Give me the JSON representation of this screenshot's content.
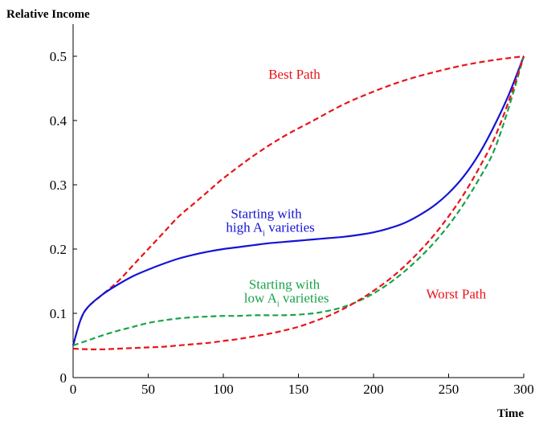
{
  "chart_data": {
    "type": "line",
    "title": "",
    "xlabel": "Time",
    "ylabel": "Relative Income",
    "xlim": [
      0,
      300
    ],
    "ylim": [
      0,
      0.55
    ],
    "xticks": [
      0,
      50,
      100,
      150,
      200,
      250,
      300
    ],
    "yticks": [
      0,
      0.1,
      0.2,
      0.3,
      0.4,
      0.5
    ],
    "xtick_labels": [
      "0",
      "50",
      "100",
      "150",
      "200",
      "250",
      "300"
    ],
    "ytick_labels": [
      "0",
      "0.1",
      "0.2",
      "0.3",
      "0.4",
      "0.5"
    ],
    "grid": false,
    "legend": "none",
    "series": [
      {
        "key": "best",
        "color": "#e8141a",
        "style": "dashed",
        "x": [
          0,
          5,
          10,
          20,
          30,
          40,
          50,
          60,
          70,
          80,
          90,
          100,
          120,
          140,
          160,
          180,
          200,
          220,
          240,
          260,
          280,
          300
        ],
        "y": [
          0.05,
          0.09,
          0.11,
          0.13,
          0.15,
          0.175,
          0.2,
          0.225,
          0.25,
          0.27,
          0.29,
          0.31,
          0.345,
          0.375,
          0.4,
          0.425,
          0.445,
          0.462,
          0.475,
          0.486,
          0.494,
          0.5
        ]
      },
      {
        "key": "high",
        "color": "#1414d4",
        "style": "solid",
        "x": [
          0,
          5,
          10,
          20,
          30,
          40,
          50,
          60,
          70,
          80,
          90,
          100,
          110,
          120,
          130,
          140,
          150,
          160,
          170,
          180,
          190,
          200,
          210,
          220,
          230,
          240,
          250,
          260,
          270,
          280,
          290,
          300
        ],
        "y": [
          0.05,
          0.09,
          0.11,
          0.13,
          0.145,
          0.158,
          0.168,
          0.177,
          0.185,
          0.191,
          0.196,
          0.2,
          0.203,
          0.206,
          0.209,
          0.211,
          0.213,
          0.215,
          0.217,
          0.219,
          0.222,
          0.226,
          0.232,
          0.24,
          0.252,
          0.267,
          0.287,
          0.313,
          0.347,
          0.39,
          0.44,
          0.5
        ]
      },
      {
        "key": "low",
        "color": "#1aa34a",
        "style": "dashed",
        "x": [
          0,
          10,
          20,
          30,
          40,
          50,
          60,
          70,
          80,
          90,
          100,
          110,
          120,
          130,
          140,
          150,
          160,
          170,
          180,
          190,
          200,
          210,
          220,
          230,
          240,
          250,
          260,
          270,
          280,
          290,
          300
        ],
        "y": [
          0.05,
          0.058,
          0.066,
          0.073,
          0.079,
          0.085,
          0.089,
          0.092,
          0.094,
          0.095,
          0.096,
          0.096,
          0.097,
          0.097,
          0.097,
          0.098,
          0.1,
          0.104,
          0.11,
          0.119,
          0.131,
          0.146,
          0.164,
          0.185,
          0.209,
          0.237,
          0.27,
          0.308,
          0.352,
          0.42,
          0.5
        ]
      },
      {
        "key": "worst",
        "color": "#e8141a",
        "style": "dashed",
        "x": [
          0,
          10,
          20,
          30,
          40,
          50,
          60,
          70,
          80,
          90,
          100,
          110,
          120,
          130,
          140,
          150,
          160,
          170,
          180,
          190,
          200,
          210,
          220,
          230,
          240,
          250,
          260,
          270,
          280,
          290,
          300
        ],
        "y": [
          0.045,
          0.044,
          0.044,
          0.045,
          0.046,
          0.047,
          0.048,
          0.05,
          0.052,
          0.054,
          0.057,
          0.06,
          0.064,
          0.068,
          0.073,
          0.079,
          0.087,
          0.096,
          0.107,
          0.12,
          0.135,
          0.152,
          0.172,
          0.195,
          0.221,
          0.251,
          0.285,
          0.325,
          0.37,
          0.43,
          0.5
        ]
      }
    ],
    "annotations": [
      {
        "key": "best",
        "lines": [
          "Best Path"
        ],
        "color": "#e8141a",
        "at": [
          130,
          0.465
        ],
        "subscript": ""
      },
      {
        "key": "high",
        "lines": [
          "Starting with",
          "high A",
          " varieties"
        ],
        "color": "#1414d4",
        "at": [
          105,
          0.248
        ],
        "subscript": "i"
      },
      {
        "key": "low",
        "lines": [
          "Starting with",
          "low A",
          " varieties"
        ],
        "color": "#1aa34a",
        "at": [
          117,
          0.138
        ],
        "subscript": "i"
      },
      {
        "key": "worst",
        "lines": [
          "Worst Path"
        ],
        "color": "#e8141a",
        "at": [
          235,
          0.123
        ],
        "subscript": ""
      }
    ]
  }
}
